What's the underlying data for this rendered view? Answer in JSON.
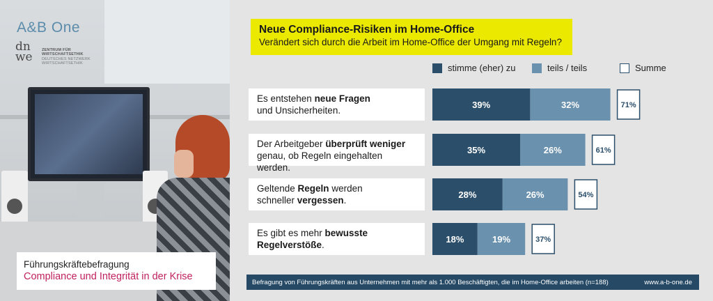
{
  "brand": {
    "name": "A&B One"
  },
  "dnwe_logo": {
    "monogram_1": "dn",
    "monogram_2": "we",
    "line_1": "ZENTRUM FÜR",
    "line_2": "WIRTSCHAFTSETHIK",
    "line_3": "DEUTSCHES NETZWERK",
    "line_4": "WIRTSCHAFTSETHIK"
  },
  "caption": {
    "line_1": "Führungskräftebefragung",
    "line_2": "Compliance und Integrität in der Krise"
  },
  "footer": {
    "text": "Befragung von Führungskräften aus Unternehmen mit mehr als 1.000 Beschäftigten, die im Home-Office arbeiten (n=188)",
    "url": "www.a-b-one.de"
  },
  "colors": {
    "dark_series": "#2b4e6a",
    "light_series": "#6a91ae",
    "title_highlight": "#ebe900",
    "accent_text": "#c0215f"
  },
  "chart_data": {
    "type": "bar",
    "orientation": "horizontal",
    "stacked": true,
    "title": "Neue Compliance-Risiken im Home-Office",
    "subtitle": "Verändert sich durch die Arbeit im Home-Office der Umgang mit Regeln?",
    "legend": [
      "stimme (eher) zu",
      "teils / teils",
      "Summe"
    ],
    "legend_position": "top",
    "categories": [
      [
        {
          "t": "Es entstehen ",
          "b": false
        },
        {
          "t": "neue Fragen",
          "b": true
        },
        {
          "t": "\nund Unsicherheiten.",
          "b": false
        }
      ],
      [
        {
          "t": "Der Arbeitgeber ",
          "b": false
        },
        {
          "t": "überprüft weniger",
          "b": true
        },
        {
          "t": "\ngenau, ob Regeln eingehalten werden.",
          "b": false
        }
      ],
      [
        {
          "t": "Geltende ",
          "b": false
        },
        {
          "t": "Regeln",
          "b": true
        },
        {
          "t": " werden\nschneller ",
          "b": false
        },
        {
          "t": "vergessen",
          "b": true
        },
        {
          "t": ".",
          "b": false
        }
      ],
      [
        {
          "t": "Es gibt es mehr ",
          "b": false
        },
        {
          "t": "bewusste\nRegelverstöße",
          "b": true
        },
        {
          "t": ".",
          "b": false
        }
      ]
    ],
    "series": [
      {
        "name": "stimme (eher) zu",
        "values": [
          39,
          35,
          28,
          18
        ]
      },
      {
        "name": "teils / teils",
        "values": [
          32,
          26,
          26,
          19
        ]
      }
    ],
    "totals": [
      71,
      61,
      54,
      37
    ],
    "value_suffix": "%"
  }
}
